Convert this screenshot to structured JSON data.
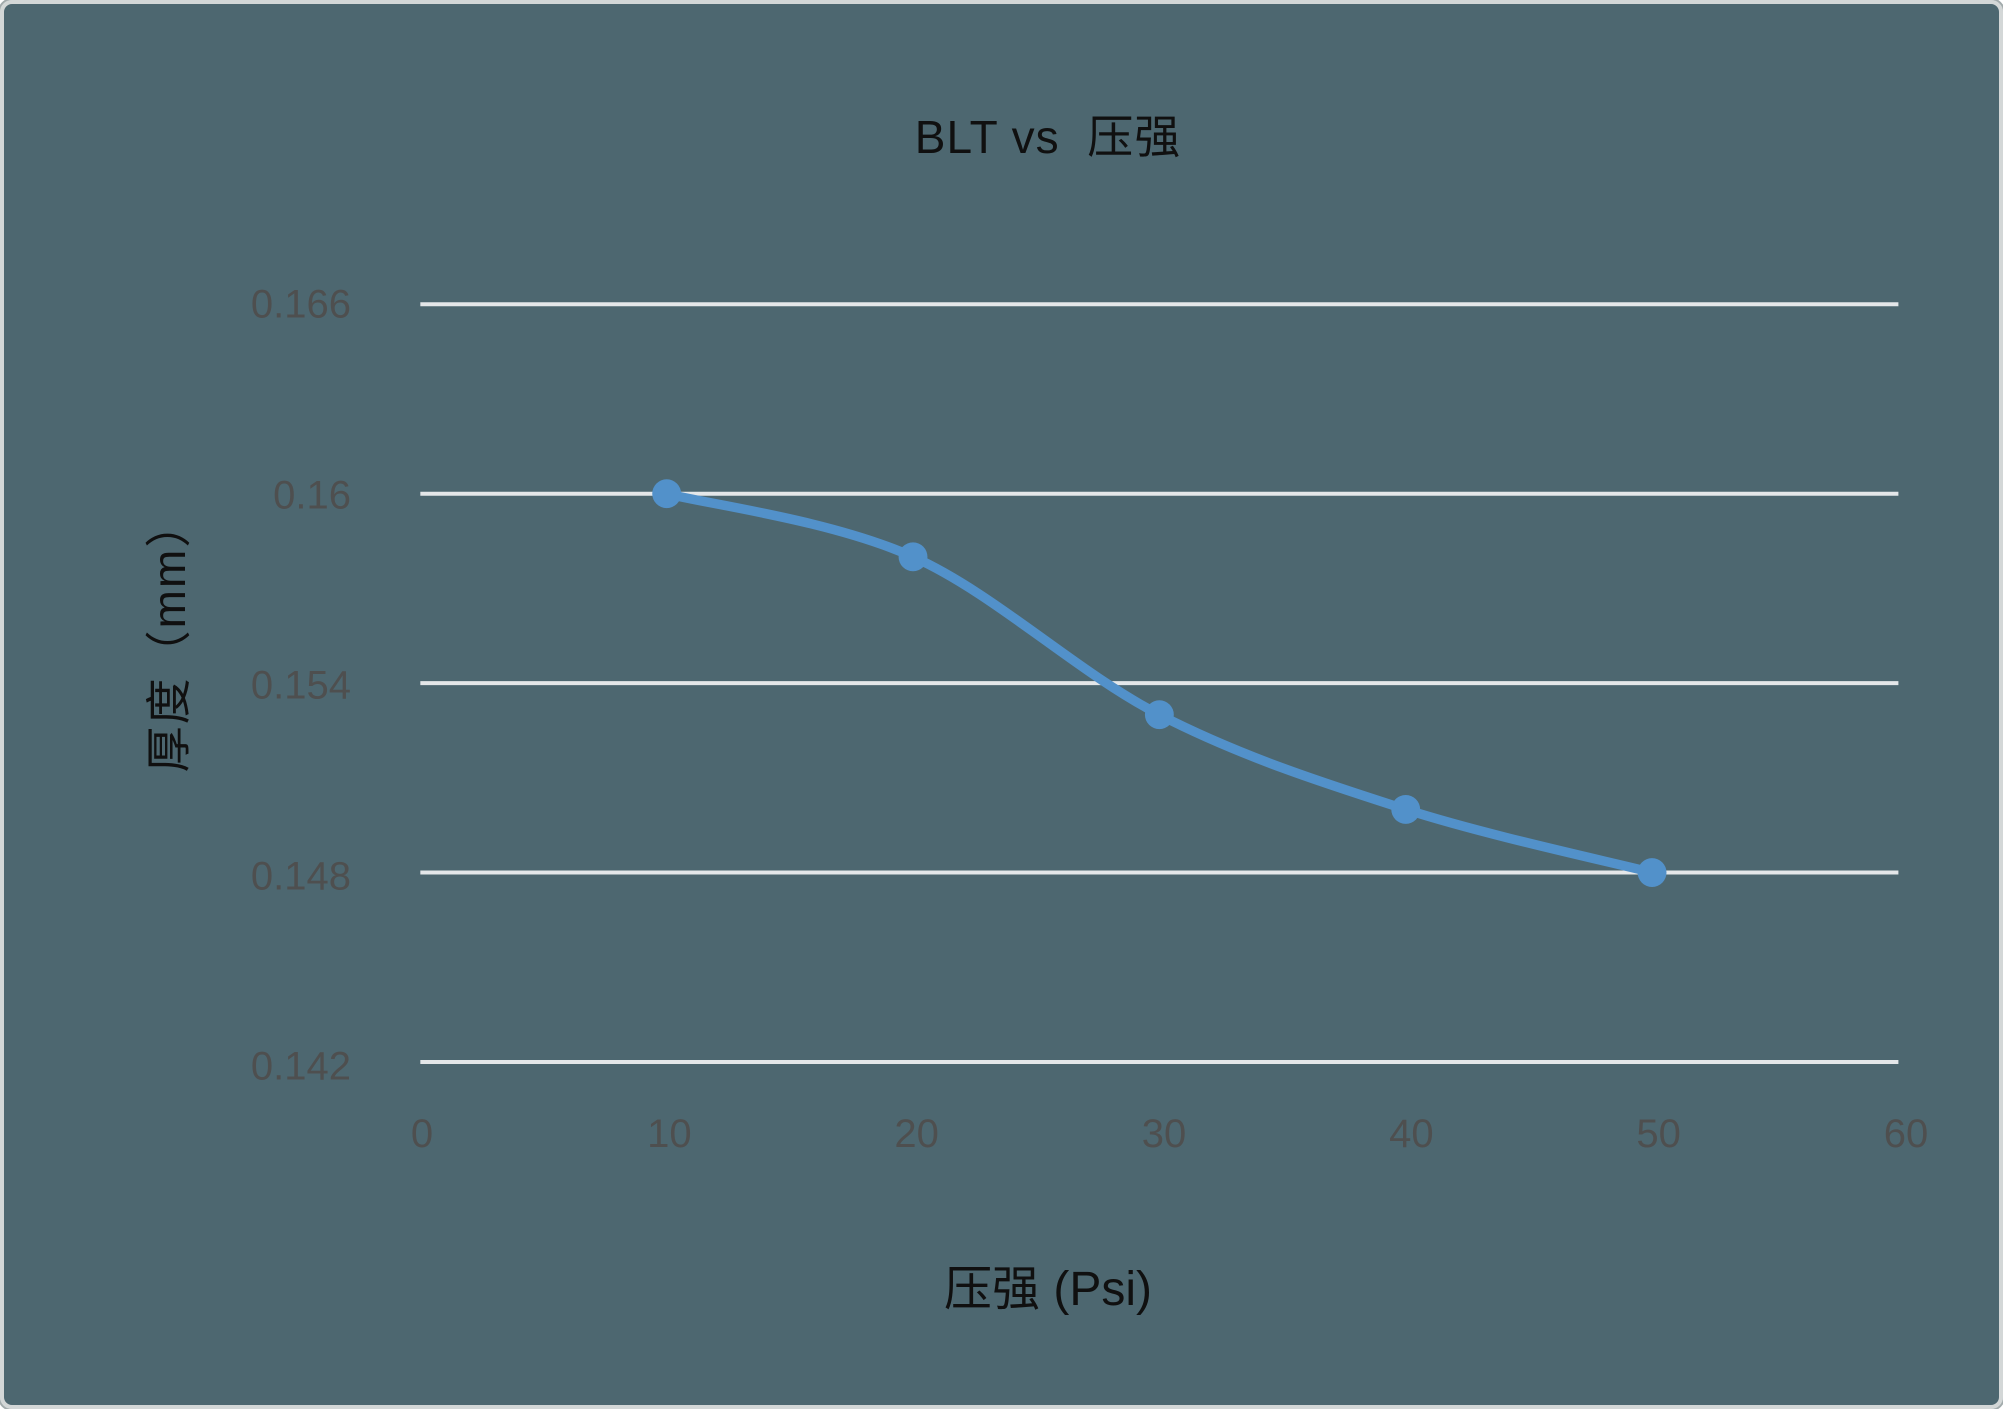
{
  "chart": {
    "title": "BLT vs  压强",
    "x_axis": {
      "title": "压强 (Psi)"
    },
    "y_axis": {
      "title": "厚度（mm）"
    }
  },
  "colors": {
    "background": "#4D6770",
    "frame": "#D3D7D7",
    "frame_outer": "#A2ABAC",
    "series": "#5291CA",
    "gridline": "#E4E7E9",
    "tick_text": "#4E4F4F",
    "title_text": "#101010"
  },
  "chart_data": {
    "type": "line",
    "title": "BLT vs  压强",
    "xlabel": "压强 (Psi)",
    "ylabel": "厚度（mm）",
    "x": [
      10,
      20,
      30,
      40,
      50
    ],
    "y": [
      0.16,
      0.158,
      0.153,
      0.15,
      0.148
    ],
    "xlim": [
      0,
      60
    ],
    "ylim": [
      0.142,
      0.166
    ],
    "xticks": [
      0,
      10,
      20,
      30,
      40,
      50,
      60
    ],
    "yticks": [
      0.166,
      0.16,
      0.154,
      0.148,
      0.142
    ],
    "xtick_labels": [
      "0",
      "10",
      "20",
      "30",
      "40",
      "50",
      "60"
    ],
    "ytick_labels": [
      "0.166",
      "0.16",
      "0.154",
      "0.148",
      "0.142"
    ],
    "grid": "horizontal",
    "smooth": true,
    "marker": "circle",
    "legend": "none"
  }
}
